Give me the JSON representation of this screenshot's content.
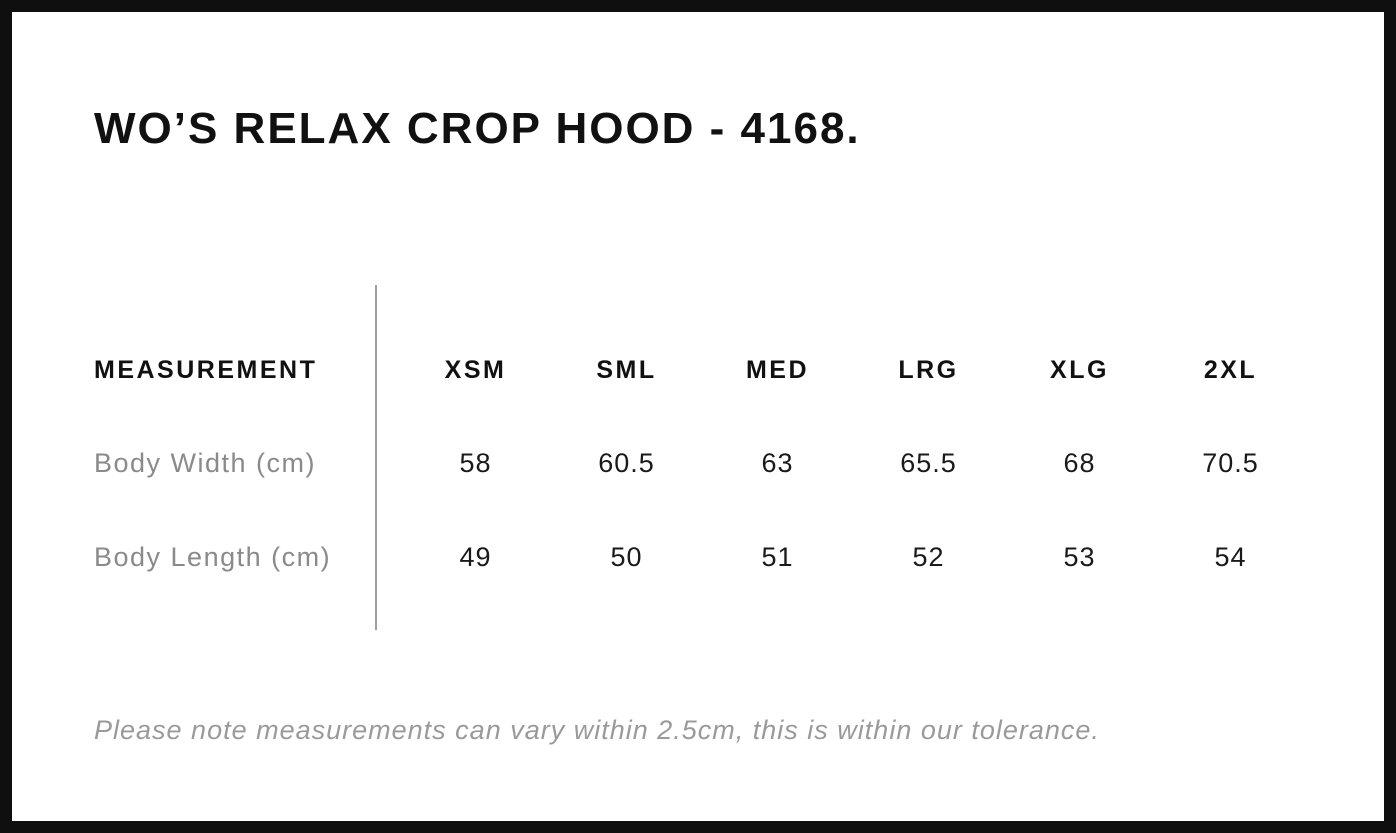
{
  "page": {
    "title": "WO’S RELAX CROP HOOD - 4168.",
    "note": "Please note measurements can vary within 2.5cm, this is within our tolerance."
  },
  "chart_data": {
    "type": "table",
    "title": "WO’S RELAX CROP HOOD - 4168.",
    "columns": [
      "MEASUREMENT",
      "XSM",
      "SML",
      "MED",
      "LRG",
      "XLG",
      "2XL"
    ],
    "rows": [
      [
        "Body Width (cm)",
        58,
        60.5,
        63,
        65.5,
        68,
        70.5
      ],
      [
        "Body Length (cm)",
        49,
        50,
        51,
        52,
        53,
        54
      ]
    ],
    "note": "Please note measurements can vary within 2.5cm, this is within our tolerance.",
    "layout": {
      "label_column_divider": true,
      "grid": "off"
    }
  },
  "colors": {
    "text_primary": "#111111",
    "text_secondary": "#8a8a8a",
    "note_text": "#9a9a9a",
    "divider": "#9e9e9e",
    "frame_border": "#0f0f0f",
    "background": "#ffffff"
  }
}
